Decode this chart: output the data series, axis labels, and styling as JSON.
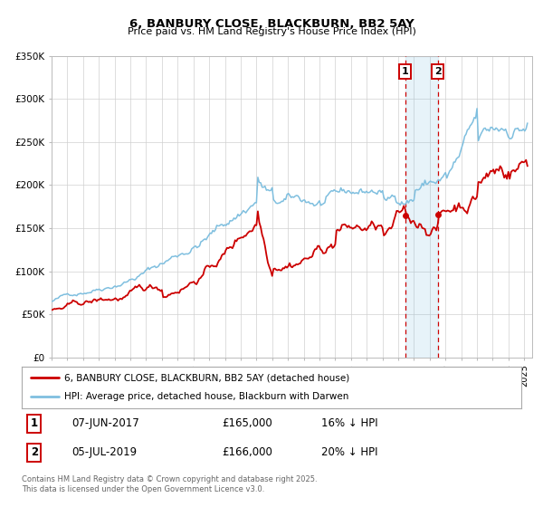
{
  "title": "6, BANBURY CLOSE, BLACKBURN, BB2 5AY",
  "subtitle": "Price paid vs. HM Land Registry's House Price Index (HPI)",
  "ylim": [
    0,
    350000
  ],
  "yticks": [
    0,
    50000,
    100000,
    150000,
    200000,
    250000,
    300000,
    350000
  ],
  "ytick_labels": [
    "£0",
    "£50K",
    "£100K",
    "£150K",
    "£200K",
    "£250K",
    "£300K",
    "£350K"
  ],
  "background_color": "#ffffff",
  "grid_color": "#d0d0d0",
  "hpi_color": "#7fbfdf",
  "price_color": "#cc0000",
  "transaction1_date": "07-JUN-2017",
  "transaction1_price": "£165,000",
  "transaction1_hpi_diff": "16% ↓ HPI",
  "transaction2_date": "05-JUL-2019",
  "transaction2_price": "£166,000",
  "transaction2_hpi_diff": "20% ↓ HPI",
  "legend_label1": "6, BANBURY CLOSE, BLACKBURN, BB2 5AY (detached house)",
  "legend_label2": "HPI: Average price, detached house, Blackburn with Darwen",
  "footer": "Contains HM Land Registry data © Crown copyright and database right 2025.\nThis data is licensed under the Open Government Licence v3.0.",
  "marker1_x": 2017.44,
  "marker1_y": 165000,
  "marker2_x": 2019.51,
  "marker2_y": 166000,
  "vline1_x": 2017.44,
  "vline2_x": 2019.51,
  "shade_start": 2017.44,
  "shade_end": 2019.51,
  "xlim_start": 1995,
  "xlim_end": 2025.5
}
